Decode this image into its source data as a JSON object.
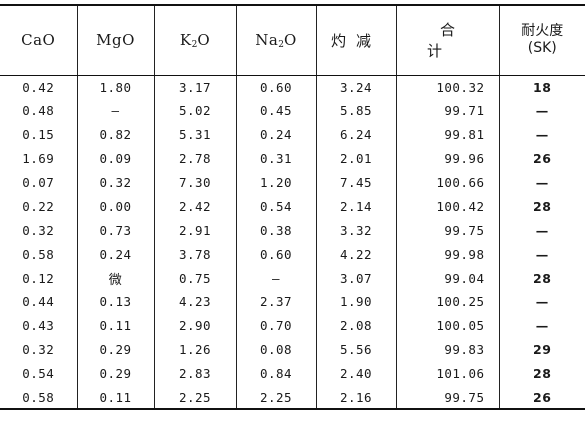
{
  "table": {
    "headers": [
      {
        "main": "CaO",
        "sub": ""
      },
      {
        "main": "MgO",
        "sub": ""
      },
      {
        "main": "K",
        "sub": "2",
        "tail": "O"
      },
      {
        "main": "Na",
        "sub": "2",
        "tail": "O"
      },
      {
        "main": "灼减",
        "sub": ""
      },
      {
        "main": "合计",
        "sub": ""
      },
      {
        "main": "耐火度",
        "line2": "(SK)"
      }
    ],
    "rows": [
      [
        "0.42",
        "1.80",
        "3.17",
        "0.60",
        "3.24",
        "100.32",
        "18"
      ],
      [
        "0.48",
        "—",
        "5.02",
        "0.45",
        "5.85",
        "99.71",
        "—"
      ],
      [
        "0.15",
        "0.82",
        "5.31",
        "0.24",
        "6.24",
        "99.81",
        "—"
      ],
      [
        "1.69",
        "0.09",
        "2.78",
        "0.31",
        "2.01",
        "99.96",
        "26"
      ],
      [
        "0.07",
        "0.32",
        "7.30",
        "1.20",
        "7.45",
        "100.66",
        "—"
      ],
      [
        "0.22",
        "0.00",
        "2.42",
        "0.54",
        "2.14",
        "100.42",
        "28"
      ],
      [
        "0.32",
        "0.73",
        "2.91",
        "0.38",
        "3.32",
        "99.75",
        "—"
      ],
      [
        "0.58",
        "0.24",
        "3.78",
        "0.60",
        "4.22",
        "99.98",
        "—"
      ],
      [
        "0.12",
        "微",
        "0.75",
        "—",
        "3.07",
        "99.04",
        "28"
      ],
      [
        "0.44",
        "0.13",
        "4.23",
        "2.37",
        "1.90",
        "100.25",
        "—"
      ],
      [
        "0.43",
        "0.11",
        "2.90",
        "0.70",
        "2.08",
        "100.05",
        "—"
      ],
      [
        "0.32",
        "0.29",
        "1.26",
        "0.08",
        "5.56",
        "99.83",
        "29"
      ],
      [
        "0.54",
        "0.29",
        "2.83",
        "0.84",
        "2.40",
        "101.06",
        "28"
      ],
      [
        "0.58",
        "0.11",
        "2.25",
        "2.25",
        "2.16",
        "99.75",
        "26"
      ]
    ]
  }
}
